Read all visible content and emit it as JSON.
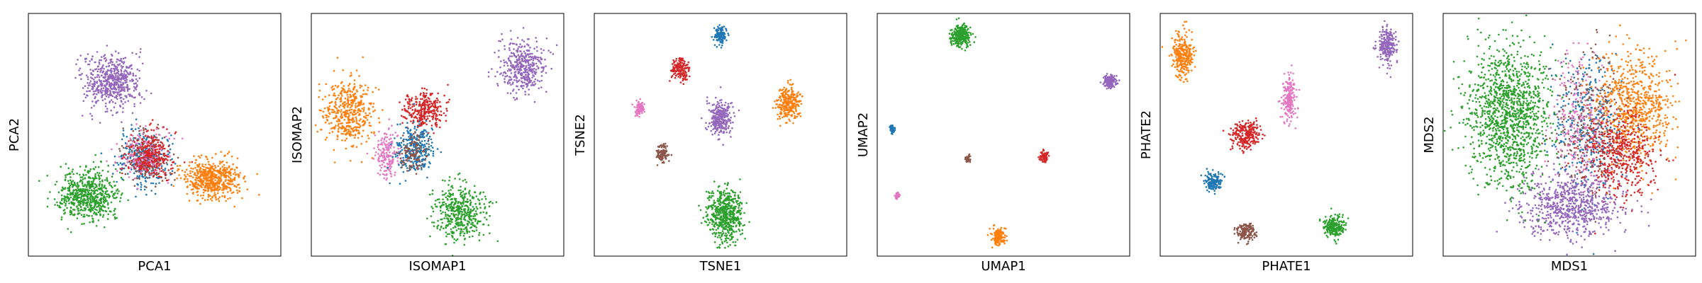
{
  "colors": {
    "c0": "#1f77b4",
    "c1": "#ff7f0e",
    "c2": "#2ca02c",
    "c3": "#d62728",
    "c4": "#9467bd",
    "c5": "#8c564b",
    "c6": "#e377c2"
  },
  "chart_data": [
    {
      "type": "scatter",
      "xlabel": "PCA1",
      "ylabel": "PCA2",
      "grid": false,
      "legend": "none",
      "xlim": [
        0,
        1
      ],
      "ylim": [
        0,
        1
      ],
      "clusters": [
        {
          "color": "c4",
          "x": 0.33,
          "y": 0.72,
          "sx": 0.055,
          "sy": 0.055,
          "n": 560
        },
        {
          "color": "c2",
          "x": 0.23,
          "y": 0.25,
          "sx": 0.06,
          "sy": 0.05,
          "n": 640
        },
        {
          "color": "c1",
          "x": 0.73,
          "y": 0.32,
          "sx": 0.055,
          "sy": 0.04,
          "n": 560
        },
        {
          "color": "c0",
          "x": 0.46,
          "y": 0.4,
          "sx": 0.05,
          "sy": 0.055,
          "n": 300
        },
        {
          "color": "c5",
          "x": 0.47,
          "y": 0.41,
          "sx": 0.05,
          "sy": 0.05,
          "n": 180
        },
        {
          "color": "c6",
          "x": 0.46,
          "y": 0.41,
          "sx": 0.05,
          "sy": 0.05,
          "n": 180
        },
        {
          "color": "c3",
          "x": 0.48,
          "y": 0.42,
          "sx": 0.045,
          "sy": 0.045,
          "n": 280
        }
      ]
    },
    {
      "type": "scatter",
      "xlabel": "ISOMAP1",
      "ylabel": "ISOMAP2",
      "grid": false,
      "legend": "none",
      "xlim": [
        0,
        1
      ],
      "ylim": [
        0,
        1
      ],
      "clusters": [
        {
          "color": "c4",
          "x": 0.84,
          "y": 0.78,
          "sx": 0.045,
          "sy": 0.055,
          "n": 420
        },
        {
          "color": "c1",
          "x": 0.15,
          "y": 0.6,
          "sx": 0.05,
          "sy": 0.07,
          "n": 460
        },
        {
          "color": "c3",
          "x": 0.45,
          "y": 0.6,
          "sx": 0.04,
          "sy": 0.04,
          "n": 300
        },
        {
          "color": "c6",
          "x": 0.3,
          "y": 0.42,
          "sx": 0.025,
          "sy": 0.05,
          "n": 180
        },
        {
          "color": "c0",
          "x": 0.41,
          "y": 0.44,
          "sx": 0.035,
          "sy": 0.05,
          "n": 300
        },
        {
          "color": "c5",
          "x": 0.4,
          "y": 0.42,
          "sx": 0.025,
          "sy": 0.04,
          "n": 120
        },
        {
          "color": "c2",
          "x": 0.59,
          "y": 0.18,
          "sx": 0.05,
          "sy": 0.06,
          "n": 460
        }
      ]
    },
    {
      "type": "scatter",
      "xlabel": "TSNE1",
      "ylabel": "TSNE2",
      "grid": false,
      "legend": "none",
      "xlim": [
        0,
        1
      ],
      "ylim": [
        0,
        1
      ],
      "clusters": [
        {
          "color": "c0",
          "x": 0.5,
          "y": 0.91,
          "sx": 0.012,
          "sy": 0.018,
          "n": 120
        },
        {
          "color": "c3",
          "x": 0.34,
          "y": 0.77,
          "sx": 0.018,
          "sy": 0.025,
          "n": 160
        },
        {
          "color": "c6",
          "x": 0.18,
          "y": 0.61,
          "sx": 0.01,
          "sy": 0.014,
          "n": 90
        },
        {
          "color": "c4",
          "x": 0.5,
          "y": 0.57,
          "sx": 0.024,
          "sy": 0.035,
          "n": 280
        },
        {
          "color": "c1",
          "x": 0.77,
          "y": 0.63,
          "sx": 0.024,
          "sy": 0.035,
          "n": 280
        },
        {
          "color": "c5",
          "x": 0.27,
          "y": 0.42,
          "sx": 0.011,
          "sy": 0.018,
          "n": 110
        },
        {
          "color": "c2",
          "x": 0.52,
          "y": 0.17,
          "sx": 0.035,
          "sy": 0.055,
          "n": 560
        }
      ]
    },
    {
      "type": "scatter",
      "xlabel": "UMAP1",
      "ylabel": "UMAP2",
      "grid": false,
      "legend": "none",
      "xlim": [
        0,
        1
      ],
      "ylim": [
        0,
        1
      ],
      "clusters": [
        {
          "color": "c2",
          "x": 0.33,
          "y": 0.91,
          "sx": 0.018,
          "sy": 0.022,
          "n": 300
        },
        {
          "color": "c4",
          "x": 0.92,
          "y": 0.72,
          "sx": 0.012,
          "sy": 0.014,
          "n": 160
        },
        {
          "color": "c0",
          "x": 0.06,
          "y": 0.52,
          "sx": 0.006,
          "sy": 0.008,
          "n": 70
        },
        {
          "color": "c5",
          "x": 0.36,
          "y": 0.4,
          "sx": 0.005,
          "sy": 0.007,
          "n": 50
        },
        {
          "color": "c3",
          "x": 0.66,
          "y": 0.41,
          "sx": 0.008,
          "sy": 0.012,
          "n": 80
        },
        {
          "color": "c6",
          "x": 0.08,
          "y": 0.25,
          "sx": 0.004,
          "sy": 0.006,
          "n": 40
        },
        {
          "color": "c1",
          "x": 0.48,
          "y": 0.08,
          "sx": 0.012,
          "sy": 0.016,
          "n": 160
        }
      ]
    },
    {
      "type": "scatter",
      "xlabel": "PHATE1",
      "ylabel": "PHATE2",
      "grid": false,
      "legend": "none",
      "xlim": [
        0,
        1
      ],
      "ylim": [
        0,
        1
      ],
      "clusters": [
        {
          "color": "c1",
          "x": 0.09,
          "y": 0.83,
          "sx": 0.02,
          "sy": 0.045,
          "n": 280
        },
        {
          "color": "c4",
          "x": 0.9,
          "y": 0.87,
          "sx": 0.018,
          "sy": 0.035,
          "n": 240
        },
        {
          "color": "c6",
          "x": 0.51,
          "y": 0.65,
          "sx": 0.014,
          "sy": 0.045,
          "n": 200
        },
        {
          "color": "c3",
          "x": 0.34,
          "y": 0.5,
          "sx": 0.028,
          "sy": 0.028,
          "n": 260
        },
        {
          "color": "c0",
          "x": 0.21,
          "y": 0.31,
          "sx": 0.016,
          "sy": 0.018,
          "n": 160
        },
        {
          "color": "c5",
          "x": 0.34,
          "y": 0.1,
          "sx": 0.018,
          "sy": 0.018,
          "n": 160
        },
        {
          "color": "c2",
          "x": 0.69,
          "y": 0.12,
          "sx": 0.022,
          "sy": 0.022,
          "n": 220
        }
      ]
    },
    {
      "type": "scatter",
      "xlabel": "MDS1",
      "ylabel": "MDS2",
      "grid": false,
      "legend": "none",
      "xlim": [
        0,
        1
      ],
      "ylim": [
        0,
        1
      ],
      "clusters": [
        {
          "color": "c0",
          "x": 0.57,
          "y": 0.55,
          "sx": 0.07,
          "sy": 0.15,
          "n": 380
        },
        {
          "color": "c5",
          "x": 0.57,
          "y": 0.55,
          "sx": 0.07,
          "sy": 0.15,
          "n": 280
        },
        {
          "color": "c6",
          "x": 0.55,
          "y": 0.55,
          "sx": 0.06,
          "sy": 0.14,
          "n": 240
        },
        {
          "color": "c1",
          "x": 0.76,
          "y": 0.62,
          "sx": 0.075,
          "sy": 0.11,
          "n": 700
        },
        {
          "color": "c3",
          "x": 0.7,
          "y": 0.42,
          "sx": 0.07,
          "sy": 0.09,
          "n": 500
        },
        {
          "color": "c4",
          "x": 0.5,
          "y": 0.21,
          "sx": 0.1,
          "sy": 0.065,
          "n": 700
        },
        {
          "color": "c2",
          "x": 0.26,
          "y": 0.58,
          "sx": 0.085,
          "sy": 0.14,
          "n": 1300
        }
      ]
    }
  ]
}
